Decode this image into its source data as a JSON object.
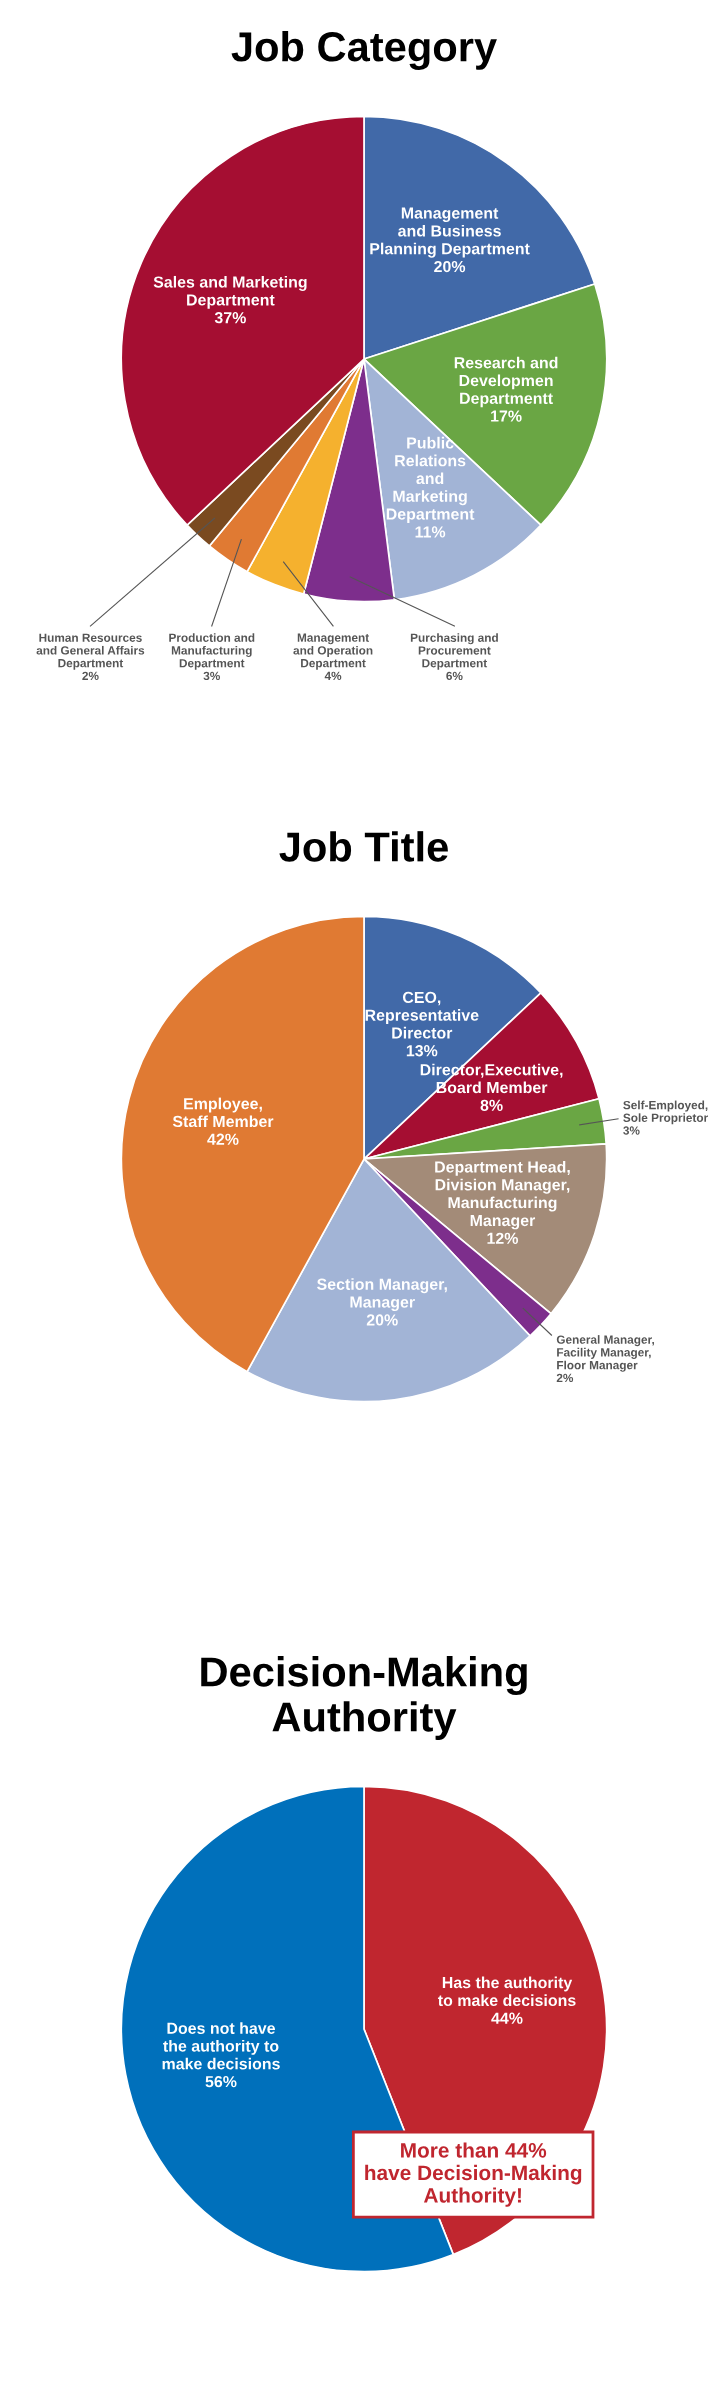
{
  "chart_data": [
    {
      "type": "pie",
      "title": "Job Category",
      "categories": [
        "Management\nand Business\nPlanning Department",
        "Research and\nDevelopmen\nDepartmentt",
        "Public\nRelations\nand\nMarketing\nDepartment",
        "Purchasing and\nProcurement\nDepartment",
        "Management\nand Operation\nDepartment",
        "Production and\nManufacturing\nDepartment",
        "Human Resources\nand General Affairs\nDepartment",
        "Sales and Marketing\nDepartment"
      ],
      "values": [
        20,
        17,
        11,
        6,
        4,
        3,
        2,
        37
      ],
      "value_labels": [
        "20%",
        "17%",
        "11%",
        "6%",
        "4%",
        "3%",
        "2%",
        "37%"
      ],
      "colors": [
        "#4169a8",
        "#6aa644",
        "#a2b4d6",
        "#7d2e8c",
        "#f5b12e",
        "#e07a33",
        "#7a4a20",
        "#a50e32"
      ]
    },
    {
      "type": "pie",
      "title": "Job Title",
      "categories": [
        "CEO,\nRepresentative\nDirector",
        "Director,Executive,\nBoard Member",
        "Self-Employed,\nSole Proprietor",
        "Department Head,\nDivision Manager,\nManufacturing\nManager",
        "General Manager,\nFacility Manager,\nFloor Manager",
        "Section Manager,\nManager",
        "Employee,\nStaff Member"
      ],
      "values": [
        13,
        8,
        3,
        12,
        2,
        20,
        42
      ],
      "value_labels": [
        "13%",
        "8%",
        "3%",
        "12%",
        "2%",
        "20%",
        "42%"
      ],
      "colors": [
        "#4169a8",
        "#a50e32",
        "#6aa644",
        "#a38b78",
        "#7d2e8c",
        "#a2b4d6",
        "#e07a33"
      ]
    },
    {
      "type": "pie",
      "title": "Decision-Making\nAuthority",
      "categories": [
        "Has the authority\nto make decisions",
        "Does not have\nthe authority to\nmake decisions"
      ],
      "values": [
        44,
        56
      ],
      "value_labels": [
        "44%",
        "56%"
      ],
      "colors": [
        "#c0262f",
        "#0070bb"
      ],
      "annotations": [
        "More than 44%\nhave Decision-Making\nAuthority!"
      ]
    }
  ]
}
